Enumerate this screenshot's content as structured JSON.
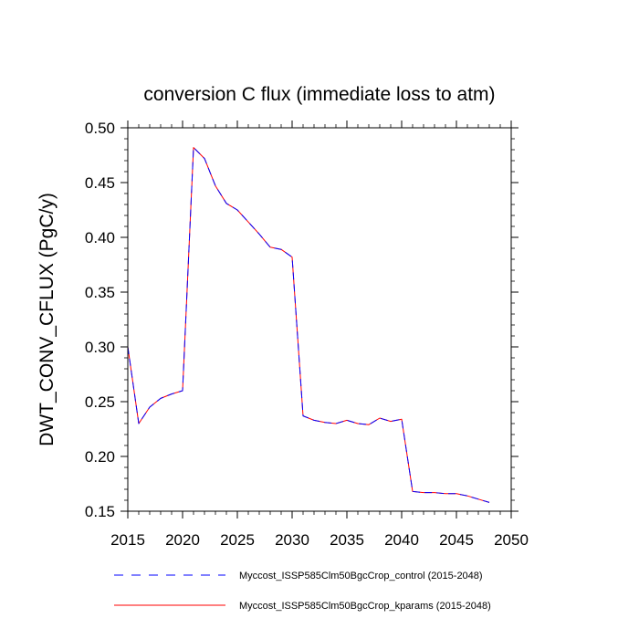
{
  "chart_data": {
    "type": "line",
    "title": "conversion C flux (immediate loss to atm)",
    "xlabel": "",
    "ylabel": "DWT_CONV_CFLUX  (PgC/y)",
    "xlim": [
      2015,
      2050
    ],
    "ylim": [
      0.15,
      0.5
    ],
    "xticks": [
      2015,
      2020,
      2025,
      2030,
      2035,
      2040,
      2045,
      2050
    ],
    "yticks": [
      0.15,
      0.2,
      0.25,
      0.3,
      0.35,
      0.4,
      0.45,
      0.5
    ],
    "ytick_labels": [
      "0.15",
      "0.20",
      "0.25",
      "0.30",
      "0.35",
      "0.40",
      "0.45",
      "0.50"
    ],
    "grid": false,
    "legend_position": "bottom",
    "x": [
      2015,
      2016,
      2017,
      2018,
      2019,
      2020,
      2021,
      2022,
      2023,
      2024,
      2025,
      2026,
      2027,
      2028,
      2029,
      2030,
      2031,
      2032,
      2033,
      2034,
      2035,
      2036,
      2037,
      2038,
      2039,
      2040,
      2041,
      2042,
      2043,
      2044,
      2045,
      2046,
      2047,
      2048
    ],
    "series": [
      {
        "name": "Myccost_ISSP585Clm50BgcCrop_control (2015-2048)",
        "color": "#0000ff",
        "dash": "dashed",
        "values": [
          0.3,
          0.23,
          0.245,
          0.253,
          0.257,
          0.26,
          0.482,
          0.472,
          0.447,
          0.431,
          0.425,
          0.414,
          0.403,
          0.391,
          0.389,
          0.382,
          0.237,
          0.233,
          0.231,
          0.23,
          0.233,
          0.23,
          0.229,
          0.235,
          0.232,
          0.234,
          0.168,
          0.167,
          0.167,
          0.166,
          0.166,
          0.164,
          0.161,
          0.158
        ]
      },
      {
        "name": "Myccost_ISSP585Clm50BgcCrop_kparams (2015-2048)",
        "color": "#ff0000",
        "dash": "solid",
        "values": [
          0.3,
          0.23,
          0.245,
          0.253,
          0.257,
          0.26,
          0.482,
          0.472,
          0.447,
          0.431,
          0.425,
          0.414,
          0.403,
          0.391,
          0.389,
          0.382,
          0.237,
          0.233,
          0.231,
          0.23,
          0.233,
          0.23,
          0.229,
          0.235,
          0.232,
          0.234,
          0.168,
          0.167,
          0.167,
          0.166,
          0.166,
          0.164,
          0.161,
          0.158
        ]
      }
    ]
  }
}
